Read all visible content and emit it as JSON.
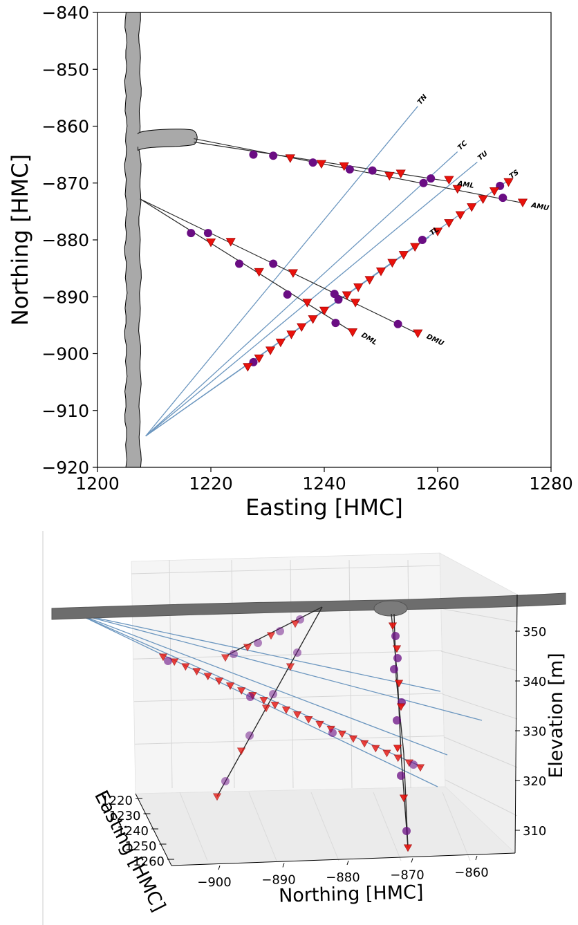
{
  "chart_data": [
    {
      "type": "line",
      "view": "plan",
      "xlabel": "Easting [HMC]",
      "ylabel": "Northing [HMC]",
      "xlim": [
        1200,
        1280
      ],
      "ylim": [
        -920,
        -840
      ],
      "xticks": [
        1200,
        1220,
        1240,
        1260,
        1280
      ],
      "yticks": [
        -840,
        -850,
        -860,
        -870,
        -880,
        -890,
        -900,
        -910,
        -920
      ],
      "xtick_labels": [
        "1200",
        "1220",
        "1240",
        "1260",
        "1280"
      ],
      "ytick_labels": [
        "−840",
        "−850",
        "−860",
        "−870",
        "−880",
        "−890",
        "−900",
        "−910",
        "−920"
      ],
      "grid": false,
      "colors": {
        "tunnel_fill": "#a9a9a9",
        "monitor": "#6b96bf",
        "borehole": "#2b2b2b",
        "marker_circle": "#6a0d83",
        "marker_triangle": "#e8120c"
      },
      "tunnel": {
        "main": {
          "x": [
            1205,
            1207.5
          ],
          "y": [
            -920,
            -840
          ]
        },
        "niche": {
          "x": [
            1207.5,
            1217.5
          ],
          "y": [
            -863.5,
            -860.8
          ]
        }
      },
      "boreholes": [
        {
          "name": "AML",
          "x": [
            1217,
            1262
          ],
          "y": [
            -862.8,
            -869.7
          ],
          "circles": [
            [
              1227.5,
              -865
            ],
            [
              1231,
              -865.2
            ],
            [
              1238,
              -866.4
            ],
            [
              1244.5,
              -867.6
            ],
            [
              1248.5,
              -867.8
            ],
            [
              1257.5,
              -870
            ],
            [
              1258.8,
              -869.2
            ]
          ],
          "triangles": [
            [
              1234,
              -865.6
            ],
            [
              1239.5,
              -866.6
            ],
            [
              1251.5,
              -868.7
            ],
            [
              1253.5,
              -868.3
            ],
            [
              1262,
              -869.4
            ]
          ]
        },
        {
          "name": "AMU",
          "x": [
            1217,
            1275
          ],
          "y": [
            -862.2,
            -873.5
          ],
          "circles": [
            [
              1271.5,
              -872.6
            ]
          ],
          "triangles": [
            [
              1243.5,
              -867
            ],
            [
              1263.5,
              -871
            ],
            [
              1275,
              -873.4
            ]
          ]
        },
        {
          "name": "DML",
          "x": [
            1207.5,
            1245
          ],
          "y": [
            -872.8,
            -896.2
          ],
          "circles": [
            [
              1216.5,
              -878.8
            ],
            [
              1225,
              -884.2
            ],
            [
              1233.5,
              -889.6
            ],
            [
              1242,
              -894.6
            ]
          ],
          "triangles": [
            [
              1220,
              -880.4
            ],
            [
              1228.5,
              -885.6
            ],
            [
              1237,
              -891
            ],
            [
              1245,
              -896.2
            ]
          ]
        },
        {
          "name": "DMU",
          "x": [
            1207.5,
            1256.5
          ],
          "y": [
            -872.8,
            -896.5
          ],
          "circles": [
            [
              1219.5,
              -878.8
            ],
            [
              1231,
              -884.2
            ],
            [
              1241.8,
              -889.5
            ],
            [
              1253,
              -894.8
            ]
          ],
          "triangles": [
            [
              1223.5,
              -880.3
            ],
            [
              1234.5,
              -885.8
            ],
            [
              1245.5,
              -891
            ],
            [
              1256.5,
              -896.4
            ]
          ]
        }
      ],
      "monitoring_lines": [
        {
          "name": "TN",
          "x": [
            1208.5,
            1256.5
          ],
          "y": [
            -914.5,
            -856.5
          ]
        },
        {
          "name": "TC",
          "x": [
            1208.5,
            1263.5
          ],
          "y": [
            -914.5,
            -864.5
          ]
        },
        {
          "name": "TU",
          "x": [
            1208.5,
            1267
          ],
          "y": [
            -914.5,
            -866.3
          ]
        },
        {
          "name": "TL",
          "x": [
            1208.5,
            1258.5
          ],
          "y": [
            -914.5,
            -879.5
          ]
        },
        {
          "name": "TS",
          "x": [
            1208.5,
            1272.5
          ],
          "y": [
            -914.5,
            -869.5
          ],
          "circles": [
            [
              1227.5,
              -901.5
            ],
            [
              1242.5,
              -890.5
            ],
            [
              1257.3,
              -880
            ],
            [
              1271,
              -870.5
            ]
          ],
          "triangles": [
            [
              1226.5,
              -902.3
            ],
            [
              1228.5,
              -900.8
            ],
            [
              1230.5,
              -899.4
            ],
            [
              1232.3,
              -898
            ],
            [
              1234.2,
              -896.6
            ],
            [
              1236,
              -895.3
            ],
            [
              1238,
              -893.9
            ],
            [
              1240,
              -892.4
            ],
            [
              1244,
              -889.7
            ],
            [
              1246,
              -888.3
            ],
            [
              1248,
              -887
            ],
            [
              1250,
              -885.5
            ],
            [
              1252,
              -884
            ],
            [
              1254,
              -882.6
            ],
            [
              1256,
              -881.2
            ],
            [
              1260,
              -878.5
            ],
            [
              1262,
              -877
            ],
            [
              1264,
              -875.6
            ],
            [
              1266,
              -874.2
            ],
            [
              1268,
              -872.8
            ],
            [
              1270,
              -871.4
            ],
            [
              1272.5,
              -869.8
            ]
          ]
        }
      ]
    },
    {
      "type": "scatter",
      "view": "3d",
      "xlabel": "Easting [HMC]",
      "ylabel": "Northing [HMC]",
      "zlabel": "Elevation [m]",
      "easting_ticks": [
        "1220",
        "1230",
        "1240",
        "1250",
        "1260"
      ],
      "northing_ticks": [
        "−900",
        "−890",
        "−880",
        "−870",
        "−860"
      ],
      "elevation_ticks": [
        "310",
        "320",
        "330",
        "340",
        "350"
      ],
      "northing_range": [
        -905,
        -855
      ],
      "elevation_range": [
        305,
        355
      ],
      "grid": true
    }
  ]
}
